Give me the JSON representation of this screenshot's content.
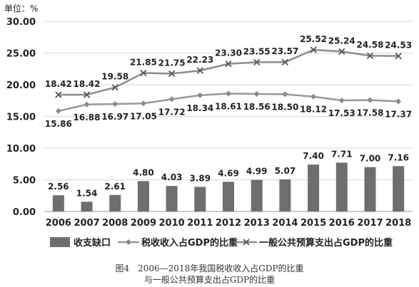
{
  "chart_data": {
    "type": "bar",
    "unit_label": "单位：%",
    "categories": [
      "2006",
      "2007",
      "2008",
      "2009",
      "2010",
      "2011",
      "2012",
      "2013",
      "2014",
      "2015",
      "2016",
      "2017",
      "2018"
    ],
    "ylim": [
      0,
      30
    ],
    "yticks": [
      "0.00",
      "5.00",
      "10.00",
      "15.00",
      "20.00",
      "25.00",
      "30.00"
    ],
    "grid": true,
    "legend_position": "bottom",
    "series": [
      {
        "name": "收支缺口",
        "kind": "bar",
        "color": "#6e6e6e",
        "values": [
          2.56,
          1.54,
          2.61,
          4.8,
          4.03,
          3.89,
          4.69,
          4.99,
          5.07,
          7.4,
          7.71,
          7.0,
          7.16
        ],
        "labels": [
          "2.56",
          "1.54",
          "2.61",
          "4.80",
          "4.03",
          "3.89",
          "4.69",
          "4.99",
          "5.07",
          "7.40",
          "7.71",
          "7.00",
          "7.16"
        ]
      },
      {
        "name": "税收收入占GDP的比重",
        "kind": "line",
        "marker": "diamond",
        "color": "#999999",
        "values": [
          15.86,
          16.88,
          16.97,
          17.05,
          17.72,
          18.34,
          18.61,
          18.56,
          18.5,
          18.12,
          17.53,
          17.58,
          17.37
        ],
        "labels": [
          "15.86",
          "16.88",
          "16.97",
          "17.05",
          "17.72",
          "18.34",
          "18.61",
          "18.56",
          "18.50",
          "18.12",
          "17.53",
          "17.58",
          "17.37"
        ]
      },
      {
        "name": "一般公共预算支出占GDP的比重",
        "kind": "line",
        "marker": "x",
        "color": "#8c8c8c",
        "values": [
          18.42,
          18.42,
          19.58,
          21.85,
          21.75,
          22.23,
          23.3,
          23.55,
          23.57,
          25.52,
          25.24,
          24.58,
          24.53
        ],
        "labels": [
          "18.42",
          "18.42",
          "19.58",
          "21.85",
          "21.75",
          "22.23",
          "23.30",
          "23.55",
          "23.57",
          "25.52",
          "25.24",
          "24.58",
          "24.53"
        ]
      }
    ]
  },
  "caption": {
    "line1": "图4　2006—2018年我国税收收入占GDP的比重",
    "line2": "与一般公共预算支出占GDP的比重"
  }
}
